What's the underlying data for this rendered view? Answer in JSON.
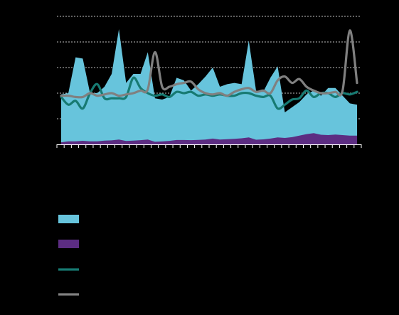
{
  "chart_data": {
    "type": "area",
    "title": "",
    "xlabel": "",
    "ylabel": "",
    "grid": true,
    "grid_style": "dotted-horizontal",
    "legend_position": "bottom-left",
    "ylim": [
      0,
      100
    ],
    "x": [
      1,
      2,
      3,
      4,
      5,
      6,
      7,
      8,
      9,
      10,
      11,
      12,
      13,
      14,
      15,
      16,
      17,
      18,
      19,
      20,
      21,
      22,
      23,
      24,
      25,
      26,
      27,
      28,
      29,
      30,
      31,
      32,
      33,
      34,
      35,
      36,
      37,
      38,
      39,
      40,
      41,
      42
    ],
    "series": [
      {
        "kind": "area",
        "color": "#67c4dc",
        "values": [
          39,
          40,
          68,
          67,
          40,
          40,
          45,
          55,
          90,
          48,
          55,
          55,
          72,
          36,
          35,
          37,
          52,
          50,
          42,
          47,
          53,
          60,
          45,
          47,
          48,
          47,
          81,
          42,
          41,
          52,
          61,
          25,
          29,
          33,
          39,
          42,
          38,
          44,
          44,
          38,
          32,
          31
        ]
      },
      {
        "kind": "area",
        "color": "#5c2d82",
        "values": [
          1.6,
          2.4,
          2.4,
          2.8,
          2.4,
          2.4,
          2.9,
          3.1,
          3.7,
          2.6,
          2.9,
          3.3,
          3.8,
          2.0,
          2.3,
          2.7,
          3.4,
          3.4,
          3.3,
          3.5,
          3.8,
          4.5,
          3.8,
          4.0,
          4.3,
          4.7,
          5.4,
          3.6,
          3.9,
          4.5,
          5.4,
          5.0,
          5.6,
          6.8,
          8.0,
          8.8,
          7.5,
          7.2,
          7.6,
          7.2,
          6.8,
          6.8
        ]
      },
      {
        "kind": "line",
        "color": "#177a72",
        "values": [
          37,
          31,
          34,
          28,
          40,
          47,
          36,
          36,
          36,
          37,
          52,
          44,
          40,
          38,
          39,
          37,
          41,
          40,
          41,
          38,
          39,
          38,
          39,
          38,
          38,
          40,
          40,
          38,
          37,
          38,
          28,
          31,
          35,
          36,
          42,
          37,
          40,
          40,
          37,
          40,
          39,
          41
        ]
      },
      {
        "kind": "line",
        "color": "#808080",
        "values": [
          38,
          38,
          37,
          37,
          40,
          38,
          39,
          40,
          38,
          39,
          40,
          42,
          43,
          72,
          45,
          45,
          47,
          48,
          49,
          43,
          40,
          39,
          40,
          38,
          41,
          43,
          44,
          41,
          42,
          40,
          50,
          53,
          48,
          51,
          45,
          42,
          40,
          40,
          41,
          42,
          89,
          48
        ]
      }
    ]
  }
}
